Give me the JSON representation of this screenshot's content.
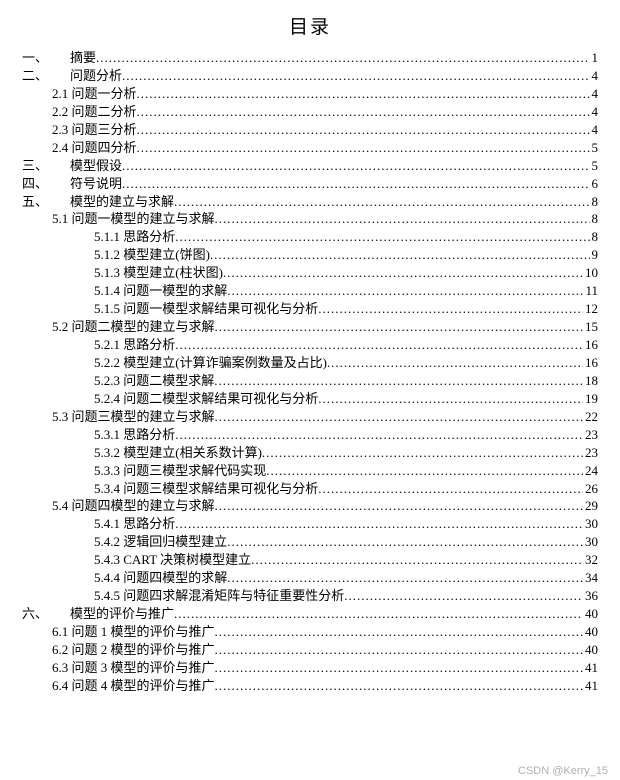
{
  "title": "目录",
  "watermark": "CSDN @Kerry_15",
  "entries": [
    {
      "level": 0,
      "num": "一、",
      "text": "摘要",
      "page": "1"
    },
    {
      "level": 0,
      "num": "二、",
      "text": "问题分析",
      "page": "4"
    },
    {
      "level": 1,
      "num": "",
      "text": "2.1 问题一分析",
      "page": "4"
    },
    {
      "level": 1,
      "num": "",
      "text": "2.2 问题二分析",
      "page": "4"
    },
    {
      "level": 1,
      "num": "",
      "text": "2.3 问题三分析",
      "page": "4"
    },
    {
      "level": 1,
      "num": "",
      "text": "2.4 问题四分析",
      "page": "5"
    },
    {
      "level": 0,
      "num": "三、",
      "text": "模型假设",
      "page": "5"
    },
    {
      "level": 0,
      "num": "四、",
      "text": "符号说明",
      "page": "6"
    },
    {
      "level": 0,
      "num": "五、",
      "text": "模型的建立与求解",
      "page": "8"
    },
    {
      "level": 1,
      "num": "",
      "text": "5.1 问题一模型的建立与求解",
      "page": "8"
    },
    {
      "level": 2,
      "num": "",
      "text": "5.1.1 思路分析",
      "page": "8"
    },
    {
      "level": 2,
      "num": "",
      "text": "5.1.2 模型建立(饼图)",
      "page": "9"
    },
    {
      "level": 2,
      "num": "",
      "text": "5.1.3 模型建立(柱状图)",
      "page": "10"
    },
    {
      "level": 2,
      "num": "",
      "text": "5.1.4 问题一模型的求解",
      "page": "11"
    },
    {
      "level": 2,
      "num": "",
      "text": "5.1.5 问题一模型求解结果可视化与分析",
      "page": "12"
    },
    {
      "level": 1,
      "num": "",
      "text": "5.2 问题二模型的建立与求解",
      "page": "15"
    },
    {
      "level": 2,
      "num": "",
      "text": "5.2.1 思路分析",
      "page": "16"
    },
    {
      "level": 2,
      "num": "",
      "text": "5.2.2 模型建立(计算诈骗案例数量及占比)",
      "page": "16"
    },
    {
      "level": 2,
      "num": "",
      "text": "5.2.3 问题二模型求解",
      "page": "18"
    },
    {
      "level": 2,
      "num": "",
      "text": "5.2.4 问题二模型求解结果可视化与分析",
      "page": "19"
    },
    {
      "level": 1,
      "num": "",
      "text": "5.3 问题三模型的建立与求解",
      "page": "22"
    },
    {
      "level": 2,
      "num": "",
      "text": "5.3.1 思路分析",
      "page": "23"
    },
    {
      "level": 2,
      "num": "",
      "text": "5.3.2 模型建立(相关系数计算)",
      "page": "23"
    },
    {
      "level": 2,
      "num": "",
      "text": "5.3.3 问题三模型求解代码实现",
      "page": "24"
    },
    {
      "level": 2,
      "num": "",
      "text": "5.3.4 问题三模型求解结果可视化与分析",
      "page": "26"
    },
    {
      "level": 1,
      "num": "",
      "text": "5.4 问题四模型的建立与求解",
      "page": "29"
    },
    {
      "level": 2,
      "num": "",
      "text": "5.4.1 思路分析",
      "page": "30"
    },
    {
      "level": 2,
      "num": "",
      "text": "5.4.2 逻辑回归模型建立",
      "page": "30"
    },
    {
      "level": 2,
      "num": "",
      "text": "5.4.3 CART  决策树模型建立",
      "page": "32"
    },
    {
      "level": 2,
      "num": "",
      "text": "5.4.4 问题四模型的求解",
      "page": "34"
    },
    {
      "level": 2,
      "num": "",
      "text": "5.4.5 问题四求解混淆矩阵与特征重要性分析",
      "page": "36"
    },
    {
      "level": 0,
      "num": "六、",
      "text": "模型的评价与推广",
      "page": "40"
    },
    {
      "level": 1,
      "num": "",
      "text": "6.1 问题 1 模型的评价与推广",
      "page": "40"
    },
    {
      "level": 1,
      "num": "",
      "text": "6.2 问题 2 模型的评价与推广",
      "page": "40"
    },
    {
      "level": 1,
      "num": "",
      "text": "6.3 问题 3 模型的评价与推广",
      "page": "41"
    },
    {
      "level": 1,
      "num": "",
      "text": "6.4 问题 4 模型的评价与推广",
      "page": "41"
    }
  ]
}
